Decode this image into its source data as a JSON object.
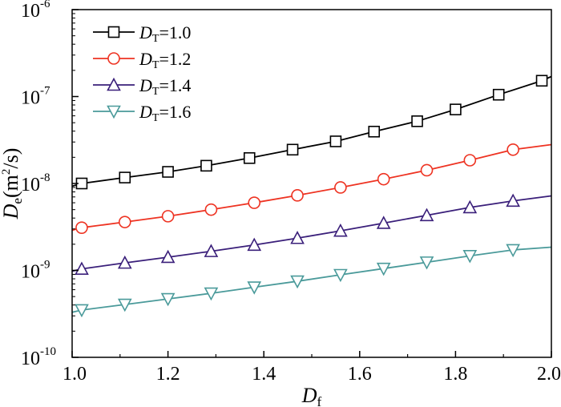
{
  "chart_data": {
    "type": "line",
    "xlabel": "Df",
    "xlabel_main": "D",
    "xlabel_sub": "f",
    "ylabel_main": "D",
    "ylabel_sub": "e",
    "ylabel_unit_pre": "(m",
    "ylabel_unit_sup": "2",
    "ylabel_unit_post": "/s)",
    "xlim": [
      1.0,
      2.0
    ],
    "ylim": [
      1e-10,
      1e-06
    ],
    "yscale": "log",
    "grid": false,
    "legend_position": "top-left",
    "x_ticks": [
      "1.0",
      "1.2",
      "1.4",
      "1.6",
      "1.8",
      "2.0"
    ],
    "y_ticks": [
      {
        "base": "10",
        "exp": "-10"
      },
      {
        "base": "10",
        "exp": "-9"
      },
      {
        "base": "10",
        "exp": "-8"
      },
      {
        "base": "10",
        "exp": "-7"
      },
      {
        "base": "10",
        "exp": "-6"
      }
    ],
    "series": [
      {
        "name": "DT=1.0",
        "legend_main": "D",
        "legend_sub": "T",
        "legend_value": "=1.0",
        "color": "#000000",
        "marker": "square",
        "x": [
          1.0,
          1.02,
          1.11,
          1.2,
          1.28,
          1.37,
          1.46,
          1.55,
          1.63,
          1.72,
          1.8,
          1.89,
          1.98,
          2.0
        ],
        "y": [
          9.3e-09,
          1e-08,
          1.17e-08,
          1.36e-08,
          1.6e-08,
          1.96e-08,
          2.45e-08,
          3.05e-08,
          3.95e-08,
          5.2e-08,
          7.1e-08,
          1.05e-07,
          1.52e-07,
          1.7e-07
        ],
        "marker_x": [
          1.02,
          1.11,
          1.2,
          1.28,
          1.37,
          1.46,
          1.55,
          1.63,
          1.72,
          1.8,
          1.89,
          1.98
        ]
      },
      {
        "name": "DT=1.2",
        "legend_main": "D",
        "legend_sub": "T",
        "legend_value": "=1.2",
        "color": "#ee3322",
        "marker": "circle",
        "x": [
          1.0,
          1.02,
          1.11,
          1.2,
          1.29,
          1.38,
          1.47,
          1.56,
          1.65,
          1.74,
          1.83,
          1.92,
          2.0
        ],
        "y": [
          2.9e-09,
          3.1e-09,
          3.6e-09,
          4.2e-09,
          5e-09,
          6e-09,
          7.3e-09,
          9e-09,
          1.12e-08,
          1.42e-08,
          1.85e-08,
          2.45e-08,
          2.8e-08
        ],
        "marker_x": [
          1.02,
          1.11,
          1.2,
          1.29,
          1.38,
          1.47,
          1.56,
          1.65,
          1.74,
          1.83,
          1.92
        ]
      },
      {
        "name": "DT=1.4",
        "legend_main": "D",
        "legend_sub": "T",
        "legend_value": "=1.4",
        "color": "#3a1f7a",
        "marker": "triangle-up",
        "x": [
          1.0,
          1.02,
          1.11,
          1.2,
          1.29,
          1.38,
          1.47,
          1.56,
          1.65,
          1.74,
          1.83,
          1.92,
          2.0
        ],
        "y": [
          9.8e-10,
          1.04e-09,
          1.22e-09,
          1.42e-09,
          1.66e-09,
          1.96e-09,
          2.35e-09,
          2.85e-09,
          3.5e-09,
          4.3e-09,
          5.3e-09,
          6.3e-09,
          7.2e-09
        ],
        "marker_x": [
          1.02,
          1.11,
          1.2,
          1.29,
          1.38,
          1.47,
          1.56,
          1.65,
          1.74,
          1.83,
          1.92
        ]
      },
      {
        "name": "DT=1.6",
        "legend_main": "D",
        "legend_sub": "T",
        "legend_value": "=1.6",
        "color": "#4a9a9a",
        "marker": "triangle-down",
        "x": [
          1.0,
          1.02,
          1.11,
          1.2,
          1.29,
          1.38,
          1.47,
          1.56,
          1.65,
          1.74,
          1.83,
          1.92,
          2.0
        ],
        "y": [
          3.3e-10,
          3.5e-10,
          4.05e-10,
          4.7e-10,
          5.45e-10,
          6.4e-10,
          7.5e-10,
          8.9e-10,
          1.05e-09,
          1.24e-09,
          1.47e-09,
          1.72e-09,
          1.85e-09
        ],
        "marker_x": [
          1.02,
          1.11,
          1.2,
          1.29,
          1.38,
          1.47,
          1.56,
          1.65,
          1.74,
          1.83,
          1.92
        ]
      }
    ]
  }
}
